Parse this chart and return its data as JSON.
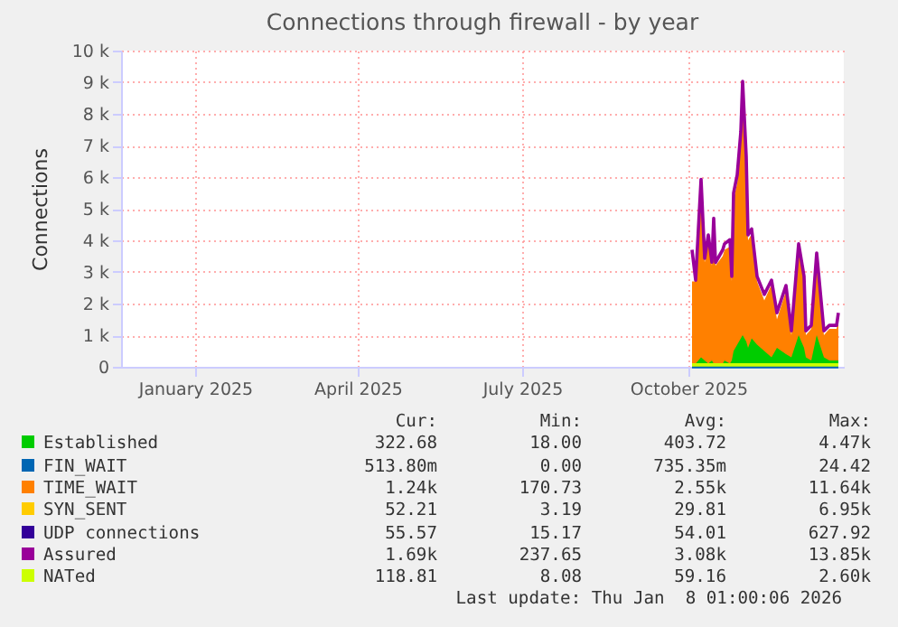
{
  "chart_data": {
    "type": "area",
    "title": "Connections through firewall - by year",
    "ylabel": "Connections",
    "x": [
      "2025-10-03",
      "2025-10-05",
      "2025-10-08",
      "2025-10-10",
      "2025-10-12",
      "2025-10-14",
      "2025-10-15",
      "2025-10-16",
      "2025-10-20",
      "2025-10-21",
      "2025-10-24",
      "2025-10-25",
      "2025-10-26",
      "2025-10-28",
      "2025-10-30",
      "2025-10-31",
      "2025-11-02",
      "2025-11-03",
      "2025-11-05",
      "2025-11-08",
      "2025-11-12",
      "2025-11-16",
      "2025-11-19",
      "2025-11-24",
      "2025-11-27",
      "2025-12-01",
      "2025-12-04",
      "2025-12-05",
      "2025-12-08",
      "2025-12-11",
      "2025-12-15",
      "2025-12-18",
      "2025-12-22",
      "2025-12-23"
    ],
    "series": [
      {
        "name": "Established",
        "color": "#00cc00",
        "values": [
          100,
          100,
          300,
          200,
          100,
          200,
          100,
          100,
          100,
          200,
          100,
          200,
          500,
          700,
          900,
          1000,
          800,
          600,
          900,
          700,
          500,
          300,
          600,
          400,
          300,
          1000,
          600,
          300,
          200,
          1000,
          300,
          200,
          200,
          200
        ]
      },
      {
        "name": "FIN_WAIT",
        "color": "#0066b3",
        "type": "line",
        "values": [
          0,
          0,
          0,
          0,
          0,
          0,
          0,
          0,
          0,
          0,
          0,
          0,
          0,
          0,
          0,
          0,
          0,
          0,
          0,
          0,
          0,
          0,
          0,
          0,
          0,
          0,
          0,
          0,
          0,
          0,
          0,
          0,
          0,
          0
        ]
      },
      {
        "name": "TIME_WAIT",
        "color": "#ff8000",
        "values": [
          2700,
          2700,
          5700,
          3300,
          4000,
          3200,
          4500,
          3200,
          3500,
          3700,
          3800,
          2700,
          5300,
          5800,
          7100,
          8700,
          6400,
          4000,
          4200,
          2700,
          2100,
          2600,
          1500,
          2400,
          1000,
          3700,
          2700,
          1000,
          1200,
          3400,
          1000,
          1200,
          1200,
          1500
        ]
      },
      {
        "name": "SYN_SENT",
        "color": "#ffcc00",
        "type": "line",
        "values": [
          null,
          null,
          null,
          null,
          null,
          null,
          null,
          null,
          null,
          null,
          null,
          null,
          null,
          null,
          null,
          null,
          null,
          null,
          null,
          null,
          null,
          null,
          null,
          null,
          null,
          null,
          null,
          null,
          null,
          null,
          null,
          null,
          null,
          null
        ]
      },
      {
        "name": "UDP connections",
        "color": "#330099",
        "type": "line",
        "values": [
          null,
          null,
          null,
          null,
          null,
          null,
          null,
          null,
          null,
          null,
          null,
          null,
          null,
          null,
          null,
          null,
          null,
          null,
          null,
          null,
          null,
          null,
          null,
          null,
          null,
          null,
          null,
          null,
          null,
          null,
          null,
          null,
          null,
          null
        ]
      },
      {
        "name": "Assured",
        "color": "#990099",
        "type": "line",
        "values": [
          3700,
          2740,
          5930,
          3430,
          4170,
          3310,
          4700,
          3300,
          3700,
          3890,
          4020,
          2860,
          5500,
          6070,
          7430,
          9030,
          6650,
          4170,
          4360,
          2860,
          2290,
          2740,
          1710,
          2570,
          1140,
          3890,
          2860,
          1140,
          1310,
          3600,
          1140,
          1310,
          1310,
          1710
        ]
      },
      {
        "name": "NATed",
        "color": "#ccff00",
        "type": "line",
        "values": [
          60,
          60,
          60,
          60,
          60,
          60,
          60,
          60,
          60,
          60,
          60,
          60,
          60,
          60,
          60,
          60,
          60,
          60,
          60,
          60,
          60,
          60,
          60,
          60,
          60,
          60,
          60,
          60,
          60,
          60,
          60,
          60,
          60,
          60
        ]
      }
    ],
    "xlim": [
      "2024-11-21",
      "2025-12-26"
    ],
    "xticks": [
      {
        "value": "2025-01-01",
        "label": "January 2025"
      },
      {
        "value": "2025-04-01",
        "label": "April 2025"
      },
      {
        "value": "2025-07-01",
        "label": "July 2025"
      },
      {
        "value": "2025-10-01",
        "label": "October 2025"
      }
    ],
    "ylim": [
      0,
      10000
    ],
    "yticks": [
      0,
      {
        "value": 1000,
        "label": "1 k"
      },
      {
        "value": 2000,
        "label": "2 k"
      },
      {
        "value": 3000,
        "label": "3 k"
      },
      {
        "value": 4000,
        "label": "4 k"
      },
      {
        "value": 5000,
        "label": "5 k"
      },
      {
        "value": 6000,
        "label": "6 k"
      },
      {
        "value": 7000,
        "label": "7 k"
      },
      {
        "value": 8000,
        "label": "8 k"
      },
      {
        "value": 9000,
        "label": "9 k"
      },
      {
        "value": 10000,
        "label": "10 k"
      }
    ],
    "grid": true,
    "legend": "bottom",
    "annotations": [
      "Cur:",
      "Min:",
      "Avg:",
      "Max:",
      "322.68",
      "18.00",
      "403.72",
      "4.47k",
      "513.80m",
      "0.00",
      "735.35m",
      "24.42",
      "1.24k",
      "170.73",
      "2.55k",
      "11.64k",
      "52.21",
      "3.19",
      "29.81",
      "6.95k",
      "55.57",
      "15.17",
      "54.01",
      "627.92",
      "1.69k",
      "237.65",
      "3.08k",
      "13.85k",
      "118.81",
      "8.08",
      "59.16",
      "2.60k",
      "Last update: Thu Jan  8 01:00:06 2026"
    ]
  }
}
